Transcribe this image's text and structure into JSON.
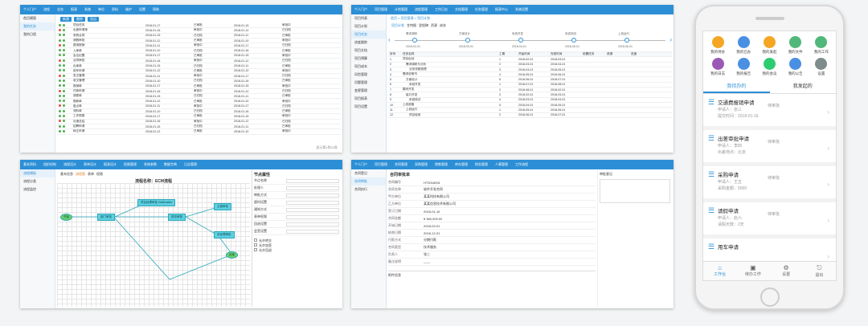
{
  "panel_a": {
    "nav": [
      "个人门户",
      "流程",
      "业务",
      "报表",
      "系统",
      "单位",
      "资料",
      "维护",
      "设置",
      "帮助"
    ],
    "side": [
      "首页模版",
      "我的任务",
      "我的日程"
    ],
    "toolbar": [
      "新建",
      "删除",
      "导出"
    ],
    "rows": [
      "项目任务",
      "出差申请单",
      "采购合同",
      "请假审批",
      "费用报销",
      "入库单",
      "会议纪要",
      "合同审批",
      "出库单",
      "用车申请",
      "发文管理",
      "收文管理",
      "报销单",
      "付款申请",
      "调拨单",
      "借款单",
      "盘点单",
      "领料单",
      "工作周报",
      "月度总结",
      "招聘申请",
      "转正申请"
    ],
    "dates": [
      "2018-01-17",
      "2018-01-16",
      "2018-01-15",
      "2018-01-12",
      "2018-01-11",
      "2018-01-10"
    ],
    "status": [
      "已审批",
      "审批中",
      "已归档"
    ],
    "footer": "显示第1到22条"
  },
  "panel_b": {
    "nav": [
      "个人门户",
      "项目管理",
      "计划管理",
      "流程管理",
      "工作日志",
      "文档管理",
      "任务管理",
      "报表中心",
      "系统设置"
    ],
    "side": [
      "项目列表",
      "项目计划",
      "项目任务",
      "进度跟踪",
      "项目文档",
      "项目预算",
      "项目成本",
      "风险管理",
      "问题管理",
      "变更管理",
      "项目报表",
      "项目设置"
    ],
    "breadcrumb": "首页 > 项目管理 > 项目计划",
    "tabs": [
      "项目计划",
      "甘特图",
      "里程碑",
      "资源",
      "成本"
    ],
    "milestones": [
      "需求调研",
      "方案设计",
      "系统开发",
      "系统测试",
      "上线运行"
    ],
    "mdates": [
      "2018-02-01",
      "2018-03-01",
      "2018-04-01",
      "2018-05-01",
      "2018-06-01",
      "2018-07-01",
      "2018-08-01"
    ],
    "tasks": [
      "项目启动",
      "需求调研与分析",
      "业务流程梳理",
      "需求说明书",
      "方案设计",
      "系统开发",
      "模块开发",
      "接口开发",
      "系统测试",
      "上线准备",
      "上线运行",
      "项目验收"
    ],
    "columns": [
      "序号",
      "任务名称",
      "工期",
      "开始时间",
      "完成时间",
      "前置任务",
      "资源",
      "进度"
    ]
  },
  "panel_c": {
    "nav": [
      "基本资料",
      "组织机构",
      "流程设计",
      "表单设计",
      "报表设计",
      "权限管理",
      "系统参数",
      "数据字典",
      "日志管理"
    ],
    "side": [
      "流程模板",
      "流程分类",
      "流程监控"
    ],
    "tabs": [
      "基本信息",
      "流程图",
      "表单",
      "权限"
    ],
    "title": "流程名称：ECM流程",
    "nodes": [
      "开始",
      "部门审批",
      "财务审核",
      "项目经理审批 Notification",
      "主管审批",
      "总经理审批",
      "结束"
    ],
    "props_title": "节点属性",
    "props": [
      "节点名称",
      "处理人",
      "审批方式",
      "超时设置",
      "通知方式",
      "表单权限",
      "回退设置",
      "会签设置"
    ],
    "options": [
      "允许转交",
      "允许加签",
      "允许回退"
    ]
  },
  "panel_d": {
    "nav": [
      "个人门户",
      "项目管理",
      "合同管理",
      "采购管理",
      "销售管理",
      "库存管理",
      "财务管理",
      "人事管理",
      "工作流程"
    ],
    "side": [
      "合同登记",
      "合同审批",
      "合同执行"
    ],
    "title": "合同审批单",
    "fields": [
      "合同编号",
      "合同名称",
      "甲方单位",
      "乙方单位",
      "签订日期",
      "合同金额",
      "开始日期",
      "结束日期",
      "付款方式",
      "合同类型",
      "负责人",
      "备注说明"
    ],
    "values": [
      "HT2018001",
      "软件开发合同",
      "某某科技有限公司",
      "某某信息技术有限公司",
      "2018-01-16",
      "¥ 360,000.00",
      "2018-02-01",
      "2018-12-31",
      "分期付款",
      "技术服务",
      "张三",
      "——"
    ],
    "right_title": "审批意见",
    "attach_title": "附件信息"
  },
  "phone": {
    "apps": [
      {
        "label": "我的待办",
        "color": "#f5a623"
      },
      {
        "label": "我的已办",
        "color": "#4a90e2"
      },
      {
        "label": "我的发起",
        "color": "#f5a623"
      },
      {
        "label": "我的文件",
        "color": "#50b87a"
      },
      {
        "label": "我的工作",
        "color": "#50b87a"
      },
      {
        "label": "我的日志",
        "color": "#9b59b6"
      },
      {
        "label": "我的报告",
        "color": "#4a90e2"
      },
      {
        "label": "我的会议",
        "color": "#2ecc71"
      },
      {
        "label": "我的公告",
        "color": "#4a90e2"
      },
      {
        "label": "设置",
        "color": "#7f8c8d"
      }
    ],
    "tabs": [
      "我待办的",
      "我发起的"
    ],
    "cards": [
      {
        "title": "交通费报销申请",
        "sub1": "申请人：张三",
        "sub2": "提交时间：2018-01-16",
        "right": "待审批"
      },
      {
        "title": "出差审批申请",
        "sub1": "申请人：李四",
        "sub2": "出差地点：北京",
        "right": "待审批"
      },
      {
        "title": "采购申请",
        "sub1": "申请人：王五",
        "sub2": "采购金额：5000",
        "right": "待审批"
      },
      {
        "title": "请假申请",
        "sub1": "申请人：赵六",
        "sub2": "请假天数：2天",
        "right": "待审批"
      },
      {
        "title": "用车申请",
        "sub1": "",
        "sub2": "",
        "right": ""
      }
    ],
    "bottom": [
      {
        "label": "工作台",
        "icon": "⌂"
      },
      {
        "label": "待办工作",
        "icon": "▣"
      },
      {
        "label": "设置",
        "icon": "⚙"
      },
      {
        "label": "退出",
        "icon": "⎋"
      }
    ]
  }
}
